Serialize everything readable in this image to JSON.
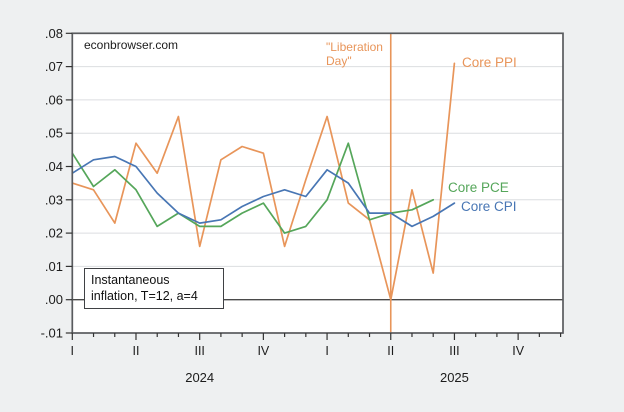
{
  "site_watermark": "econbrowser.com",
  "annotations": {
    "liberation_day_line1": "\"Liberation",
    "liberation_day_line2": "Day\"",
    "note_line1": "Instantaneous",
    "note_line2": "inflation, T=12, a=4"
  },
  "colors": {
    "ppi_orange": "#E8955A",
    "pce_green": "#55A65A",
    "cpi_blue": "#4876B4",
    "grid": "#dcdee0",
    "frame": "#595b5e",
    "zero_line": "#4a4a4a",
    "tick_text": "#1c1c1c",
    "plot_bg": "#ffffff",
    "page_bg": "#eef0f1"
  },
  "chart_data": {
    "type": "line",
    "x_unit": "month",
    "months": [
      "2024-01",
      "2024-02",
      "2024-03",
      "2024-04",
      "2024-05",
      "2024-06",
      "2024-07",
      "2024-08",
      "2024-09",
      "2024-10",
      "2024-11",
      "2024-12",
      "2025-01",
      "2025-02",
      "2025-03",
      "2025-04",
      "2025-05",
      "2025-06",
      "2025-07"
    ],
    "series": [
      {
        "name": "Core PPI",
        "color": "#E8955A",
        "values": [
          0.035,
          0.033,
          0.023,
          0.047,
          0.038,
          0.055,
          0.016,
          0.042,
          0.046,
          0.044,
          0.016,
          0.036,
          0.055,
          0.029,
          0.024,
          0.0,
          0.033,
          0.008,
          0.071
        ]
      },
      {
        "name": "Core PCE",
        "color": "#55A65A",
        "values": [
          0.044,
          0.034,
          0.039,
          0.033,
          0.022,
          0.026,
          0.022,
          0.022,
          0.026,
          0.029,
          0.02,
          0.022,
          0.03,
          0.047,
          0.024,
          0.026,
          0.027,
          0.03
        ]
      },
      {
        "name": "Core CPI",
        "color": "#4876B4",
        "values": [
          0.038,
          0.042,
          0.043,
          0.04,
          0.032,
          0.026,
          0.023,
          0.024,
          0.028,
          0.031,
          0.033,
          0.031,
          0.039,
          0.035,
          0.026,
          0.026,
          0.022,
          0.025,
          0.029
        ]
      }
    ],
    "ylim": [
      -0.01,
      0.08
    ],
    "grid": true,
    "zero_line": true,
    "yticks": [
      {
        "label": ".08",
        "value": 0.08
      },
      {
        "label": ".07",
        "value": 0.07
      },
      {
        "label": ".06",
        "value": 0.06
      },
      {
        "label": ".05",
        "value": 0.05
      },
      {
        "label": ".04",
        "value": 0.04
      },
      {
        "label": ".03",
        "value": 0.03
      },
      {
        "label": ".02",
        "value": 0.02
      },
      {
        "label": ".01",
        "value": 0.01
      },
      {
        "label": ".00",
        "value": 0.0
      },
      {
        "label": "-.01",
        "value": -0.01
      }
    ],
    "gridline_values": [
      0.07,
      0.06,
      0.05,
      0.04,
      0.03,
      0.02,
      0.01
    ],
    "xticks_quarters": [
      {
        "label": "I",
        "month": 0
      },
      {
        "label": "II",
        "month": 3
      },
      {
        "label": "III",
        "month": 6
      },
      {
        "label": "IV",
        "month": 9
      },
      {
        "label": "I",
        "month": 12
      },
      {
        "label": "II",
        "month": 15
      },
      {
        "label": "III",
        "month": 18
      },
      {
        "label": "IV",
        "month": 21
      }
    ],
    "axis_months_total": 24,
    "year_labels": [
      {
        "label": "2024",
        "center_month": 6
      },
      {
        "label": "2025",
        "center_month": 18
      }
    ],
    "vline": {
      "month": 15,
      "label": "Liberation Day",
      "color": "#E8955A"
    }
  }
}
